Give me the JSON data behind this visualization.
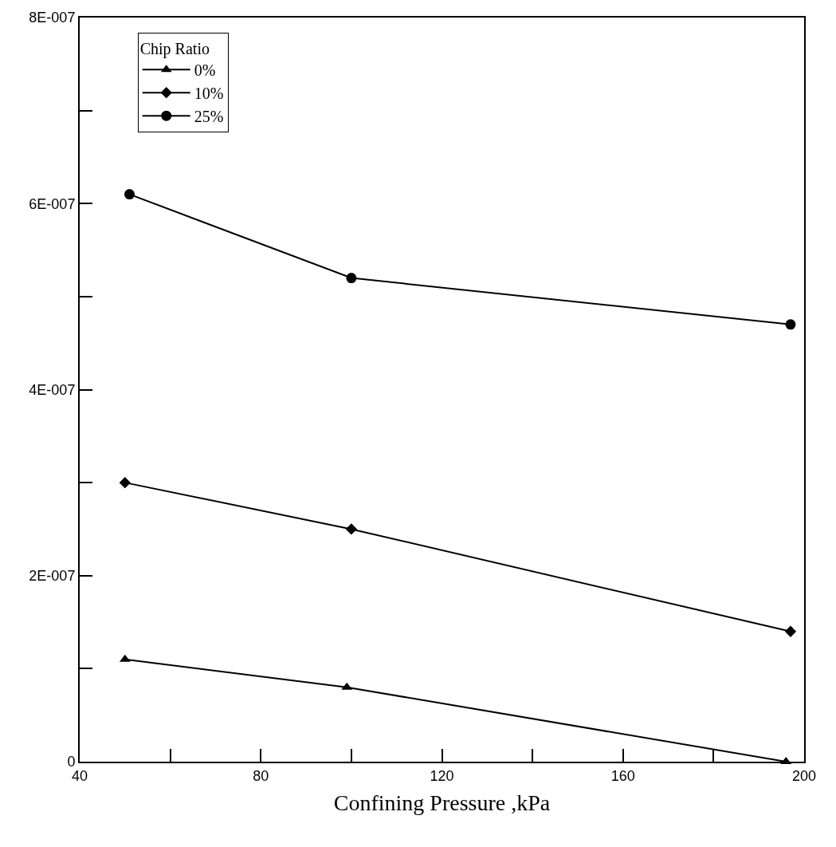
{
  "chart_data": {
    "type": "line",
    "xlabel": "Confining Pressure ,kPa",
    "legend_title": "Chip Ratio",
    "legend": "top left",
    "line_style": "solid",
    "xlim": [
      40,
      200
    ],
    "xticks": [
      40,
      {
        "value": 60,
        "label": null
      },
      80,
      {
        "value": 100,
        "label": null
      },
      120,
      {
        "value": 140,
        "label": null
      },
      160,
      {
        "value": 180,
        "label": null
      },
      200
    ],
    "ylim": [
      0,
      8e-07
    ],
    "yticks": [
      0,
      {
        "value": 1e-07,
        "label": null
      },
      {
        "value": 2e-07,
        "label": "2E-007"
      },
      {
        "value": 3e-07,
        "label": null
      },
      {
        "value": 4e-07,
        "label": "4E-007"
      },
      {
        "value": 5e-07,
        "label": null
      },
      {
        "value": 6e-07,
        "label": "6E-007"
      },
      {
        "value": 7e-07,
        "label": null
      },
      {
        "value": 8e-07,
        "label": "8E-007"
      }
    ],
    "series": [
      {
        "name": "0%",
        "color": "#000000",
        "marker": "triangle",
        "x": [
          50,
          99,
          196
        ],
        "values": [
          1.1e-07,
          8e-08,
          0.0
        ]
      },
      {
        "name": "10%",
        "color": "#000000",
        "marker": "diamond",
        "x": [
          50,
          100,
          197
        ],
        "values": [
          3e-07,
          2.5e-07,
          1.4e-07
        ]
      },
      {
        "name": "25%",
        "color": "#000000",
        "marker": "circle",
        "x": [
          51,
          100,
          197
        ],
        "values": [
          6.1e-07,
          5.2e-07,
          4.7e-07
        ]
      }
    ]
  }
}
